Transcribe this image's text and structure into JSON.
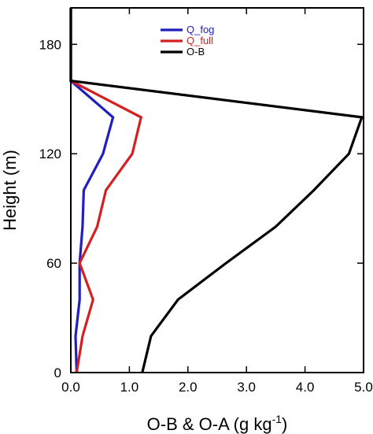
{
  "chart_data": {
    "type": "line",
    "xlabel": "O-B & O-A (g kg",
    "xlabel_sup": "-1",
    "xlabel_end": ")",
    "ylabel": "Height (m)",
    "xlim": [
      0,
      5
    ],
    "ylim": [
      0,
      200
    ],
    "x_ticks": [
      0,
      1,
      2,
      3,
      4,
      5
    ],
    "x_tick_labels": [
      "0.0",
      "1.0",
      "2.0",
      "3.0",
      "4.0",
      "5.0"
    ],
    "y_ticks": [
      0,
      60,
      120,
      180
    ],
    "y_tick_labels": [
      "0",
      "60",
      "120",
      "180"
    ],
    "grid": false,
    "legend_position": "top-center",
    "series": [
      {
        "name": "Q_fog",
        "color": "#1f1fbf",
        "points": [
          [
            0.1,
            0
          ],
          [
            0.08,
            20
          ],
          [
            0.15,
            40
          ],
          [
            0.15,
            60
          ],
          [
            0.2,
            80
          ],
          [
            0.22,
            100
          ],
          [
            0.55,
            120
          ],
          [
            0.72,
            140
          ],
          [
            0.0,
            160
          ],
          [
            0.0,
            200
          ]
        ]
      },
      {
        "name": "Q_full",
        "color": "#d42020",
        "points": [
          [
            0.1,
            0
          ],
          [
            0.2,
            20
          ],
          [
            0.38,
            40
          ],
          [
            0.15,
            60
          ],
          [
            0.45,
            80
          ],
          [
            0.6,
            100
          ],
          [
            1.05,
            120
          ],
          [
            1.2,
            140
          ],
          [
            0.0,
            160
          ],
          [
            0.0,
            200
          ]
        ]
      },
      {
        "name": "O-B",
        "color": "#000000",
        "points": [
          [
            1.22,
            0
          ],
          [
            1.37,
            20
          ],
          [
            1.83,
            40
          ],
          [
            2.65,
            60
          ],
          [
            3.5,
            80
          ],
          [
            4.15,
            100
          ],
          [
            4.75,
            120
          ],
          [
            4.97,
            140
          ],
          [
            0.0,
            160
          ],
          [
            0.0,
            200
          ]
        ]
      }
    ]
  }
}
